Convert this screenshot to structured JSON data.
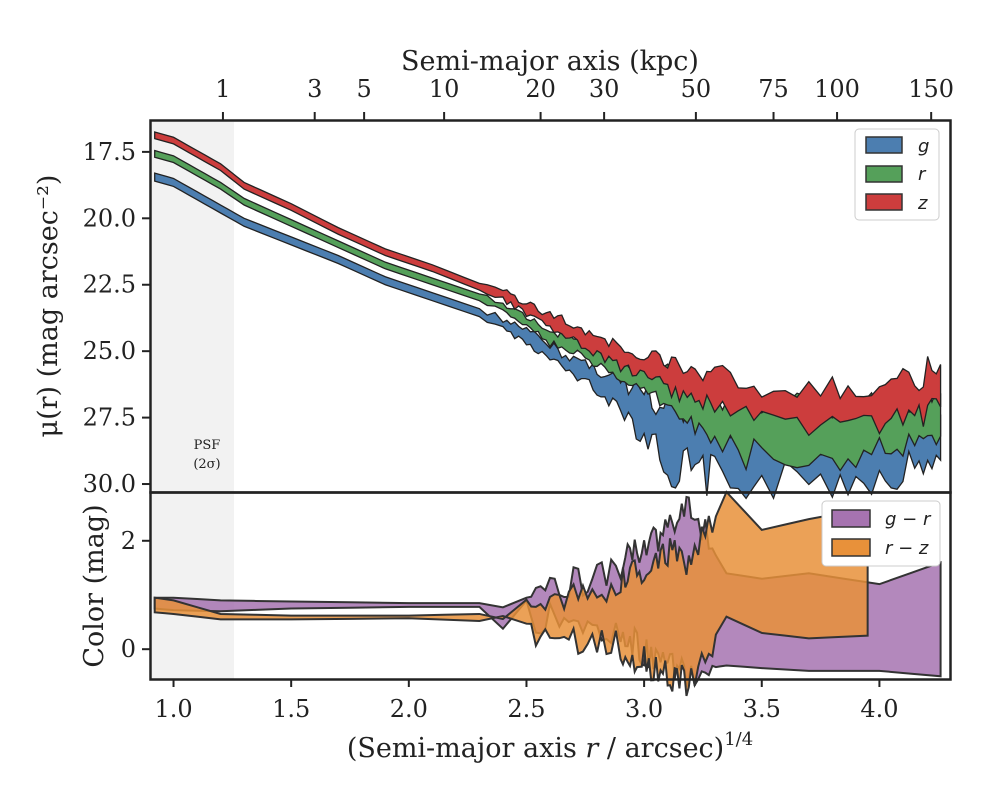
{
  "chart_data": [
    {
      "panel": "surface-brightness",
      "type": "area",
      "top_axis": {
        "title": "Semi-major axis (kpc)",
        "tick_labels": [
          "1",
          "3",
          "5",
          "10",
          "20",
          "30",
          "50",
          "75",
          "100",
          "150"
        ]
      },
      "ylabel": "μ(r) (mag arcsec⁻²)",
      "ylim": [
        30.3,
        16.3
      ],
      "y_inverted": true,
      "y_tick_labels": [
        "17.5",
        "20.0",
        "22.5",
        "25.0",
        "27.5",
        "30.0"
      ],
      "xlim": [
        0.9,
        4.3
      ],
      "shaded_region": {
        "x": [
          0.9,
          1.26
        ],
        "label_line1": "PSF",
        "label_line2": "(2σ)"
      },
      "legend_position": "top-right",
      "series": [
        {
          "name": "g",
          "color": "#4C7EB0",
          "points": [
            [
              0.92,
              18.5
            ],
            [
              1.0,
              18.7
            ],
            [
              1.1,
              19.2
            ],
            [
              1.2,
              19.7
            ],
            [
              1.3,
              20.2
            ],
            [
              1.5,
              20.9
            ],
            [
              1.7,
              21.6
            ],
            [
              1.9,
              22.4
            ],
            [
              2.1,
              23.0
            ],
            [
              2.3,
              23.6
            ],
            [
              2.4,
              24.0
            ],
            [
              2.5,
              24.5
            ],
            [
              2.6,
              25.1
            ],
            [
              2.7,
              25.6
            ],
            [
              2.8,
              26.1
            ],
            [
              2.9,
              26.6
            ],
            [
              3.0,
              27.3
            ],
            [
              3.1,
              28.0
            ],
            [
              3.2,
              28.3
            ],
            [
              3.3,
              28.5
            ],
            [
              3.5,
              28.8
            ],
            [
              3.8,
              28.7
            ],
            [
              4.0,
              28.6
            ],
            [
              4.15,
              28.4
            ],
            [
              4.26,
              28.2
            ]
          ],
          "upper_spread": [
            0.2,
            0.2,
            0.2,
            0.2,
            0.2,
            0.2,
            0.2,
            0.2,
            0.2,
            0.2,
            0.2,
            0.25,
            0.3,
            0.35,
            0.4,
            0.5,
            0.7,
            0.9,
            0.9,
            1.0,
            1.0,
            0.9,
            0.9,
            0.8,
            0.8
          ],
          "lower_spread": [
            0.1,
            0.1,
            0.1,
            0.1,
            0.1,
            0.1,
            0.1,
            0.1,
            0.1,
            0.1,
            0.15,
            0.2,
            0.2,
            0.3,
            0.35,
            0.5,
            0.9,
            1.2,
            1.3,
            1.2,
            1.2,
            1.2,
            1.1,
            1.0,
            0.9
          ]
        },
        {
          "name": "r",
          "color": "#55A05A",
          "points": [
            [
              0.92,
              17.6
            ],
            [
              1.0,
              17.8
            ],
            [
              1.1,
              18.3
            ],
            [
              1.2,
              18.8
            ],
            [
              1.3,
              19.4
            ],
            [
              1.5,
              20.2
            ],
            [
              1.7,
              21.0
            ],
            [
              1.9,
              21.8
            ],
            [
              2.1,
              22.4
            ],
            [
              2.3,
              23.0
            ],
            [
              2.4,
              23.4
            ],
            [
              2.5,
              23.9
            ],
            [
              2.6,
              24.5
            ],
            [
              2.7,
              24.8
            ],
            [
              2.8,
              25.3
            ],
            [
              2.9,
              25.7
            ],
            [
              3.0,
              26.1
            ],
            [
              3.1,
              26.5
            ],
            [
              3.2,
              27.0
            ],
            [
              3.3,
              27.6
            ],
            [
              3.5,
              28.1
            ],
            [
              3.8,
              28.0
            ],
            [
              4.0,
              27.9
            ],
            [
              4.15,
              27.7
            ],
            [
              4.26,
              27.4
            ]
          ],
          "upper_spread": [
            0.15,
            0.15,
            0.15,
            0.15,
            0.15,
            0.15,
            0.15,
            0.15,
            0.15,
            0.15,
            0.15,
            0.2,
            0.2,
            0.3,
            0.3,
            0.4,
            0.5,
            0.6,
            0.7,
            0.8,
            0.9,
            0.9,
            0.9,
            0.8,
            0.8
          ],
          "lower_spread": [
            0.1,
            0.1,
            0.1,
            0.1,
            0.1,
            0.1,
            0.1,
            0.1,
            0.1,
            0.1,
            0.1,
            0.15,
            0.2,
            0.2,
            0.25,
            0.3,
            0.4,
            0.5,
            0.6,
            0.8,
            1.0,
            1.0,
            0.9,
            0.9,
            0.8
          ]
        },
        {
          "name": "z",
          "color": "#CC3D3D",
          "points": [
            [
              0.92,
              16.9
            ],
            [
              1.0,
              17.1
            ],
            [
              1.1,
              17.6
            ],
            [
              1.2,
              18.1
            ],
            [
              1.3,
              18.8
            ],
            [
              1.5,
              19.6
            ],
            [
              1.7,
              20.5
            ],
            [
              1.9,
              21.3
            ],
            [
              2.1,
              21.9
            ],
            [
              2.3,
              22.6
            ],
            [
              2.4,
              22.9
            ],
            [
              2.5,
              23.4
            ],
            [
              2.6,
              23.9
            ],
            [
              2.7,
              24.3
            ],
            [
              2.8,
              24.8
            ],
            [
              2.9,
              25.2
            ],
            [
              3.0,
              25.6
            ],
            [
              3.1,
              25.9
            ],
            [
              3.2,
              26.2
            ],
            [
              3.3,
              26.5
            ],
            [
              3.5,
              27.0
            ],
            [
              3.8,
              27.0
            ],
            [
              4.0,
              27.0
            ],
            [
              4.15,
              26.8
            ],
            [
              4.26,
              26.4
            ]
          ],
          "upper_spread": [
            0.15,
            0.15,
            0.15,
            0.15,
            0.15,
            0.15,
            0.15,
            0.15,
            0.15,
            0.15,
            0.2,
            0.2,
            0.25,
            0.3,
            0.3,
            0.35,
            0.4,
            0.5,
            0.6,
            0.7,
            0.8,
            0.7,
            0.7,
            0.8,
            0.9
          ],
          "lower_spread": [
            0.1,
            0.1,
            0.1,
            0.1,
            0.1,
            0.1,
            0.1,
            0.1,
            0.1,
            0.1,
            0.15,
            0.2,
            0.2,
            0.25,
            0.3,
            0.35,
            0.4,
            0.5,
            0.6,
            0.7,
            0.8,
            0.8,
            0.8,
            0.7,
            0.7
          ]
        }
      ]
    },
    {
      "panel": "color",
      "type": "area",
      "ylabel": "Color (mag)",
      "ylim": [
        -0.55,
        2.9
      ],
      "y_tick_labels": [
        "0",
        "2"
      ],
      "xlabel": "(Semi-major axis r / arcsec)^1/4",
      "xlim": [
        0.9,
        4.3
      ],
      "x_tick_labels": [
        "1.0",
        "1.5",
        "2.0",
        "2.5",
        "3.0",
        "3.5",
        "4.0"
      ],
      "shaded_region": {
        "x": [
          0.9,
          1.26
        ]
      },
      "legend_position": "top-right",
      "series": [
        {
          "name": "g − r",
          "color": "#A673B0",
          "upper": [
            [
              0.92,
              0.95
            ],
            [
              1.0,
              0.95
            ],
            [
              1.2,
              0.9
            ],
            [
              1.5,
              0.88
            ],
            [
              2.0,
              0.85
            ],
            [
              2.3,
              0.85
            ],
            [
              2.5,
              0.95
            ],
            [
              2.7,
              1.1
            ],
            [
              2.9,
              1.4
            ],
            [
              3.0,
              1.8
            ],
            [
              3.1,
              2.1
            ],
            [
              3.2,
              2.5
            ],
            [
              3.35,
              1.4
            ],
            [
              3.5,
              1.3
            ],
            [
              3.7,
              1.4
            ],
            [
              4.0,
              1.2
            ],
            [
              4.26,
              1.6
            ]
          ],
          "lower": [
            [
              0.92,
              0.75
            ],
            [
              1.0,
              0.72
            ],
            [
              1.2,
              0.7
            ],
            [
              1.5,
              0.75
            ],
            [
              2.0,
              0.78
            ],
            [
              2.3,
              0.78
            ],
            [
              2.5,
              0.75
            ],
            [
              2.7,
              0.6
            ],
            [
              2.9,
              0.4
            ],
            [
              3.0,
              0.1
            ],
            [
              3.1,
              -0.2
            ],
            [
              3.2,
              -0.4
            ],
            [
              3.35,
              -0.3
            ],
            [
              3.5,
              -0.35
            ],
            [
              3.7,
              -0.4
            ],
            [
              4.0,
              -0.4
            ],
            [
              4.26,
              -0.5
            ]
          ]
        },
        {
          "name": "r − z",
          "color": "#E8913A",
          "upper": [
            [
              0.92,
              0.95
            ],
            [
              1.0,
              0.9
            ],
            [
              1.2,
              0.65
            ],
            [
              1.5,
              0.62
            ],
            [
              2.0,
              0.62
            ],
            [
              2.3,
              0.65
            ],
            [
              2.5,
              0.75
            ],
            [
              2.7,
              0.9
            ],
            [
              2.9,
              1.1
            ],
            [
              3.0,
              1.4
            ],
            [
              3.1,
              1.7
            ],
            [
              3.2,
              1.4
            ],
            [
              3.35,
              2.9
            ],
            [
              3.5,
              2.2
            ],
            [
              3.7,
              2.4
            ],
            [
              3.95,
              2.6
            ]
          ],
          "lower": [
            [
              0.92,
              0.68
            ],
            [
              1.0,
              0.65
            ],
            [
              1.2,
              0.55
            ],
            [
              1.5,
              0.55
            ],
            [
              2.0,
              0.57
            ],
            [
              2.3,
              0.52
            ],
            [
              2.5,
              0.45
            ],
            [
              2.7,
              0.3
            ],
            [
              2.9,
              0.15
            ],
            [
              3.0,
              -0.1
            ],
            [
              3.1,
              -0.4
            ],
            [
              3.2,
              -0.5
            ],
            [
              3.35,
              0.6
            ],
            [
              3.5,
              0.3
            ],
            [
              3.7,
              0.2
            ],
            [
              3.95,
              0.25
            ]
          ]
        }
      ]
    }
  ]
}
